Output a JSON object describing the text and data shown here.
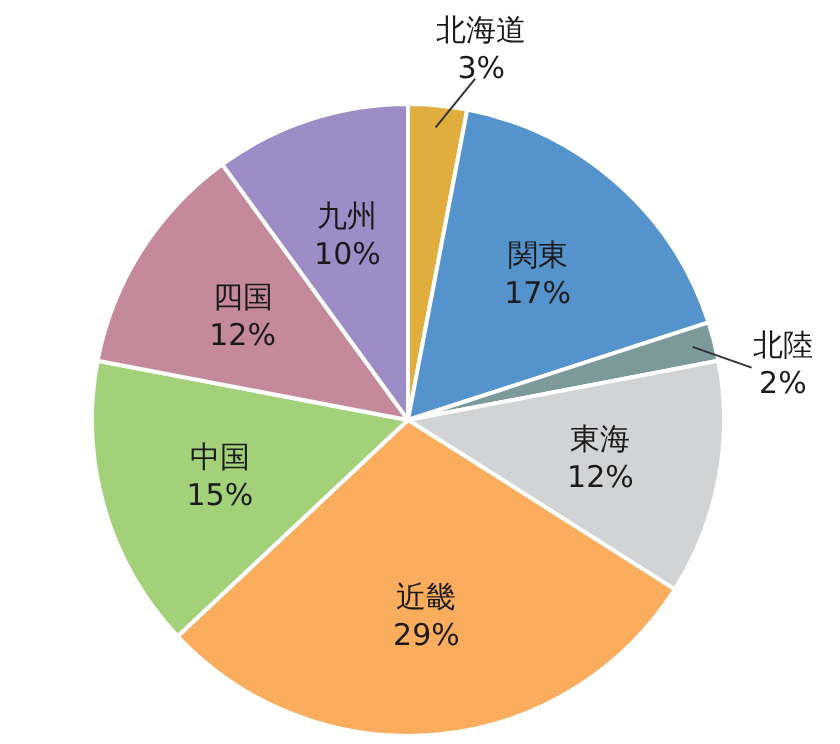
{
  "chart_data": {
    "type": "pie",
    "categories": [
      "北海道",
      "関東",
      "北陸",
      "東海",
      "近畿",
      "中国",
      "四国",
      "九州"
    ],
    "values": [
      3,
      17,
      2,
      12,
      29,
      15,
      12,
      10
    ],
    "value_labels": [
      "3%",
      "17%",
      "2%",
      "12%",
      "29%",
      "15%",
      "12%",
      "10%"
    ],
    "colors": [
      "#dfae3f",
      "#5493cc",
      "#7c9a9a",
      "#d2d3d5",
      "#f9ad5d",
      "#a3d17a",
      "#c4899b",
      "#9d8dc6"
    ]
  }
}
